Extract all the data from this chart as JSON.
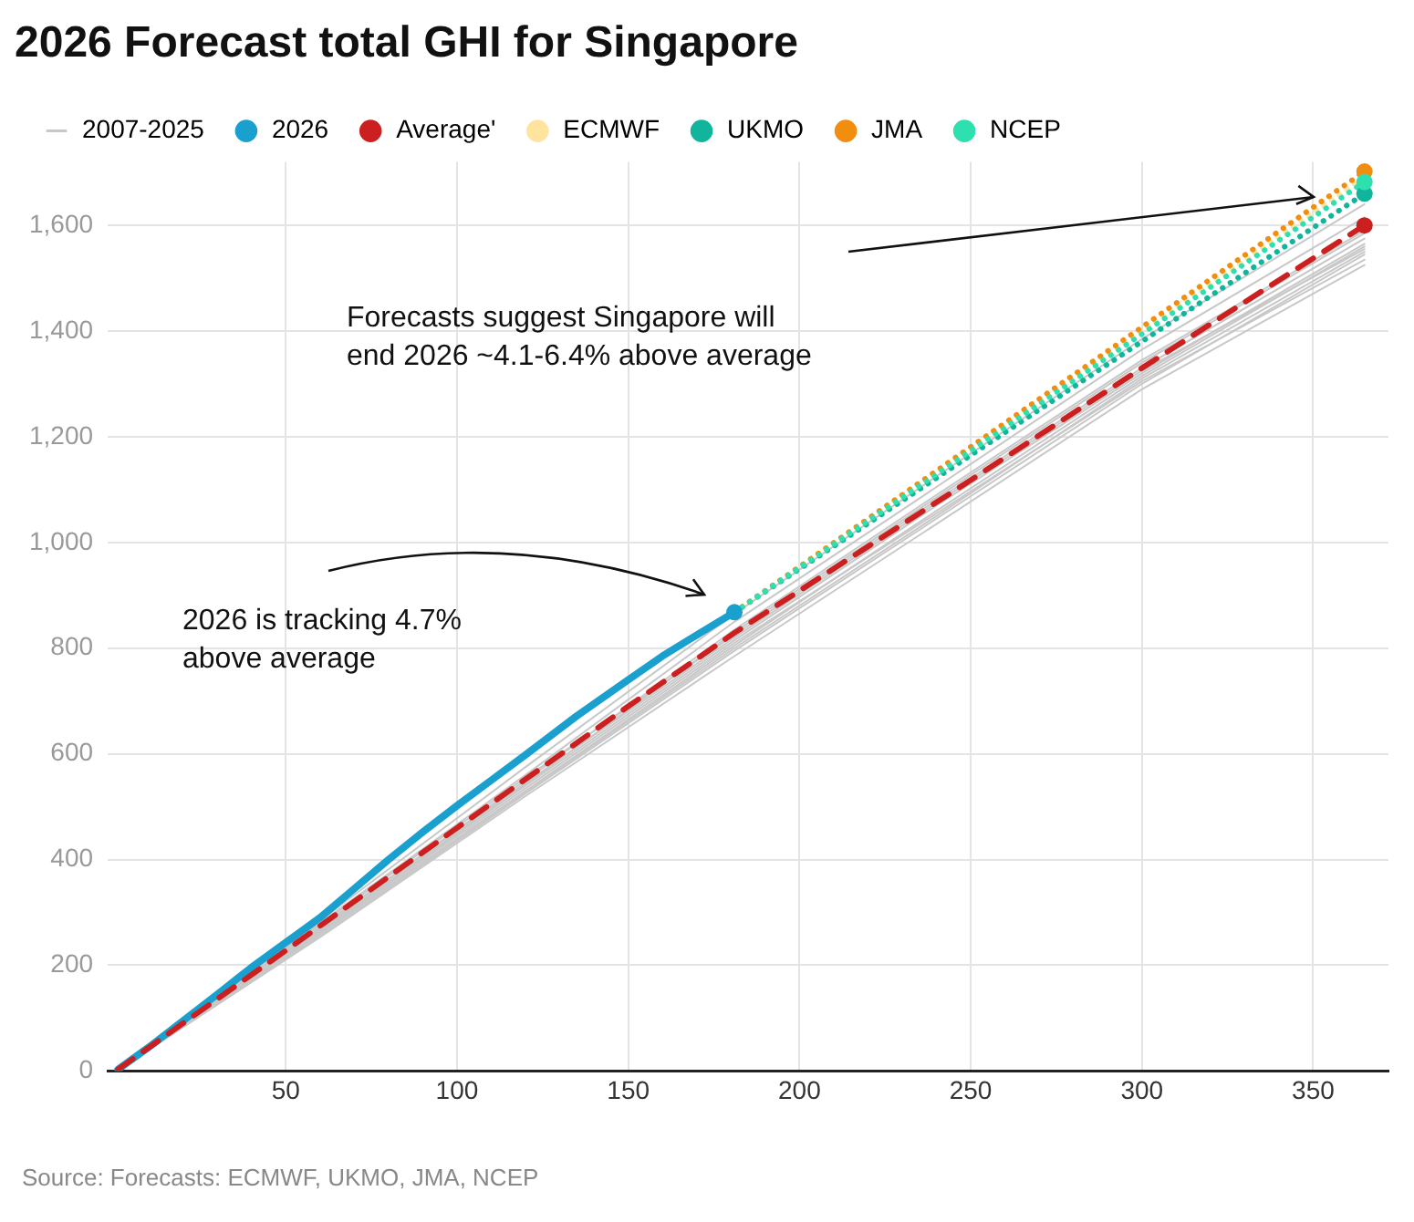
{
  "chart_data": {
    "type": "line",
    "title": "2026 Forecast total GHI for Singapore",
    "xlim": [
      -2,
      372
    ],
    "xticks": [
      50,
      100,
      150,
      200,
      250,
      300,
      350
    ],
    "ylim": [
      0,
      1720
    ],
    "yticks": [
      0,
      200,
      400,
      600,
      800,
      {
        "value": 1000,
        "label": "1,000"
      },
      {
        "value": 1200,
        "label": "1,200"
      },
      {
        "value": 1400,
        "label": "1,400"
      },
      {
        "value": 1600,
        "label": "1,600"
      }
    ],
    "grid": true,
    "legend": "top",
    "series": [
      {
        "name": "2007-2025",
        "color": "#c8c8c8",
        "line_style": "solid",
        "x": [
          1,
          60,
          120,
          181,
          240,
          300,
          365
        ],
        "values": [
          3,
          285,
          575,
          865,
          1125,
          1385,
          1640
        ]
      },
      {
        "color": "#c8c8c8",
        "line_style": "solid",
        "x": [
          1,
          60,
          120,
          181,
          240,
          300,
          365
        ],
        "values": [
          3,
          280,
          560,
          850,
          1105,
          1365,
          1615
        ]
      },
      {
        "color": "#c8c8c8",
        "line_style": "solid",
        "x": [
          1,
          60,
          120,
          181,
          240,
          300,
          365
        ],
        "values": [
          2,
          270,
          550,
          835,
          1090,
          1345,
          1590
        ]
      },
      {
        "color": "#c8c8c8",
        "line_style": "solid",
        "x": [
          1,
          60,
          120,
          181,
          240,
          300,
          365
        ],
        "values": [
          3,
          277,
          555,
          825,
          1080,
          1330,
          1575
        ]
      },
      {
        "color": "#c8c8c8",
        "line_style": "solid",
        "x": [
          1,
          60,
          120,
          181,
          240,
          300,
          365
        ],
        "values": [
          2,
          265,
          540,
          815,
          1070,
          1320,
          1565
        ]
      },
      {
        "color": "#c8c8c8",
        "line_style": "solid",
        "x": [
          1,
          60,
          120,
          181,
          240,
          300,
          365
        ],
        "values": [
          2,
          260,
          530,
          805,
          1060,
          1315,
          1560
        ]
      },
      {
        "color": "#c8c8c8",
        "line_style": "solid",
        "x": [
          1,
          60,
          120,
          181,
          240,
          300,
          365
        ],
        "values": [
          3,
          273,
          545,
          820,
          1075,
          1325,
          1555
        ]
      },
      {
        "color": "#c8c8c8",
        "line_style": "solid",
        "x": [
          1,
          60,
          120,
          181,
          240,
          300,
          365
        ],
        "values": [
          2,
          255,
          525,
          795,
          1045,
          1300,
          1545
        ]
      },
      {
        "color": "#c8c8c8",
        "line_style": "solid",
        "x": [
          1,
          60,
          120,
          181,
          240,
          300,
          365
        ],
        "values": [
          2,
          263,
          535,
          810,
          1055,
          1305,
          1535
        ]
      },
      {
        "color": "#c8c8c8",
        "line_style": "solid",
        "x": [
          1,
          60,
          120,
          181,
          240,
          300,
          365
        ],
        "values": [
          2,
          253,
          520,
          785,
          1035,
          1290,
          1525
        ]
      },
      {
        "color": "#c8c8c8",
        "line_style": "solid",
        "x": [
          1,
          60,
          120,
          181,
          240,
          300,
          365
        ],
        "values": [
          3,
          267,
          542,
          830,
          1085,
          1340,
          1585
        ]
      },
      {
        "color": "#c8c8c8",
        "line_style": "solid",
        "x": [
          1,
          60,
          120,
          181,
          240,
          300,
          365
        ],
        "values": [
          2,
          259,
          528,
          800,
          1050,
          1310,
          1550
        ]
      },
      {
        "name": "2026",
        "color": "#1aa0cf",
        "line_style": "solid",
        "x": [
          1,
          10,
          20,
          30,
          40,
          50,
          60,
          70,
          80,
          90,
          100,
          110,
          120,
          135,
          150,
          160,
          170,
          181
        ],
        "values": [
          3,
          45,
          95,
          145,
          196,
          243,
          290,
          345,
          400,
          452,
          502,
          550,
          598,
          672,
          740,
          785,
          825,
          868
        ]
      },
      {
        "name": "Average'",
        "color": "#cc1f1f",
        "line_style": "dashed",
        "x": [
          1,
          50,
          100,
          150,
          181,
          250,
          300,
          365
        ],
        "values": [
          3,
          228,
          460,
          690,
          829,
          1118,
          1330,
          1600
        ]
      },
      {
        "name": "ECMWF",
        "color": "#ffe4a0",
        "line_style": "dotted",
        "x": [
          181,
          365
        ],
        "values": [
          868,
          1690
        ]
      },
      {
        "name": "UKMO",
        "color": "#10b59b",
        "line_style": "dotted",
        "x": [
          181,
          365
        ],
        "values": [
          868,
          1660
        ]
      },
      {
        "name": "JMA",
        "color": "#f28e0f",
        "line_style": "dotted",
        "x": [
          181,
          365
        ],
        "values": [
          868,
          1702
        ]
      },
      {
        "name": "NCEP",
        "color": "#2ee0b0",
        "line_style": "dotted",
        "x": [
          181,
          365
        ],
        "values": [
          868,
          1682
        ]
      },
      {
        "type": "scatter",
        "marker": "circle",
        "color": "#1aa0cf",
        "x": [
          181
        ],
        "values": [
          868
        ]
      },
      {
        "type": "scatter",
        "marker": "circle",
        "color": "#cc1f1f",
        "x": [
          365
        ],
        "values": [
          1600
        ]
      },
      {
        "type": "scatter",
        "marker": "circle",
        "color": "#10b59b",
        "x": [
          365
        ],
        "values": [
          1660
        ]
      },
      {
        "type": "scatter",
        "marker": "circle",
        "color": "#f28e0f",
        "x": [
          365
        ],
        "values": [
          1702
        ]
      },
      {
        "type": "scatter",
        "marker": "circle",
        "color": "#2ee0b0",
        "x": [
          365
        ],
        "values": [
          1682
        ]
      }
    ],
    "annotations": [
      "2026 is tracking 4.7%\nabove average",
      "Forecasts suggest Singapore will\nend 2026 ~4.1-6.4% above average",
      "Source: Forecasts: ECMWF, UKMO, JMA, NCEP"
    ]
  }
}
